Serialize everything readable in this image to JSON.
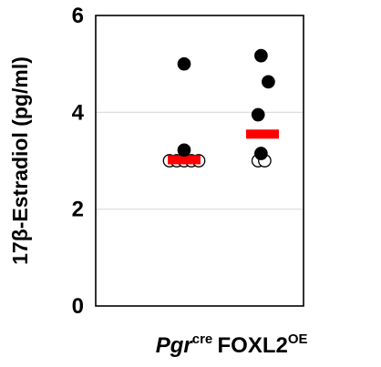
{
  "chart_data": {
    "type": "scatter",
    "title": "",
    "ylabel": "17β-Estradiol (pg/ml)",
    "xlabel": "",
    "ylim": [
      0,
      6
    ],
    "yticks": [
      0,
      2,
      4,
      6
    ],
    "grid": true,
    "grid_color": "#d9d9d9",
    "marker_edge_color": "#000000",
    "mean_color": "#ff0000",
    "groups": [
      {
        "label_main": "Pgr",
        "label_sup": "cre",
        "label_italic": true,
        "points": [
          {
            "y": 5.0,
            "filled": true
          },
          {
            "y": 3.22,
            "filled": true
          },
          {
            "y": 3.0,
            "filled": false,
            "offset": -2
          },
          {
            "y": 3.0,
            "filled": false,
            "offset": -1
          },
          {
            "y": 3.0,
            "filled": false,
            "offset": 0
          },
          {
            "y": 3.0,
            "filled": false,
            "offset": 1
          },
          {
            "y": 3.0,
            "filled": false,
            "offset": 2
          }
        ],
        "mean": 3.02,
        "mean_fill": "#ff0000"
      },
      {
        "label_main": "FOXL2",
        "label_sup": "OE",
        "label_italic": false,
        "points": [
          {
            "y": 5.17,
            "filled": true,
            "offset": -0.2
          },
          {
            "y": 4.63,
            "filled": true,
            "offset": 0.8
          },
          {
            "y": 3.95,
            "filled": true,
            "offset": -0.6
          },
          {
            "y": 3.15,
            "filled": true,
            "offset": -0.2
          },
          {
            "y": 3.0,
            "filled": false,
            "offset": -0.6
          },
          {
            "y": 3.0,
            "filled": false,
            "offset": 0.3
          }
        ],
        "mean": 3.55,
        "mean_fill": "#ff0000"
      }
    ]
  }
}
